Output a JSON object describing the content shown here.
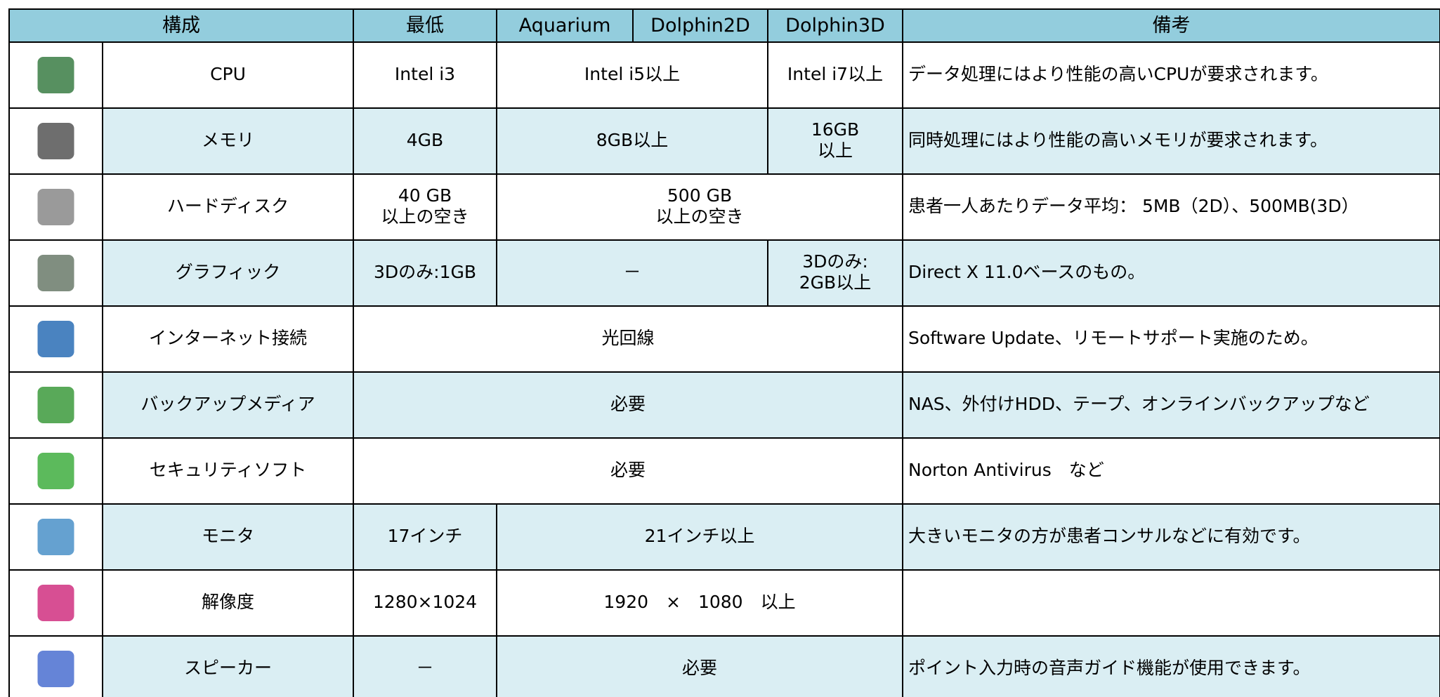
{
  "table": {
    "header": [
      "構成",
      "最低",
      "Aquarium",
      "Dolphin2D",
      "Dolphin3D",
      "備考"
    ],
    "rows": [
      {
        "name": "CPU",
        "cells": [
          "Intel i3",
          "Intel i5以上",
          "Intel i7以上"
        ],
        "note": "データ処理にはより性能の高いCPUが要求されます。"
      },
      {
        "name": "メモリ",
        "cells": [
          "4GB",
          "8GB以上",
          "16GB\n以上"
        ],
        "note": "同時処理にはより性能の高いメモリが要求されます。"
      },
      {
        "name": "ハードディスク",
        "cells": [
          "40 GB\n以上の空き",
          "500 GB\n以上の空き"
        ],
        "note": "患者一人あたりデータ平均： 5MB（2D）、500MB(3D）"
      },
      {
        "name": "グラフィック",
        "cells": [
          "3Dのみ:1GB",
          "－",
          "3Dのみ:\n2GB以上"
        ],
        "note": "Direct X 11.0ベースのもの。"
      },
      {
        "name": "インターネット接続",
        "cells": [
          "光回線"
        ],
        "note": "Software Update、リモートサポート実施のため。"
      },
      {
        "name": "バックアップメディア",
        "cells": [
          "必要"
        ],
        "note": "NAS、外付けHDD、テープ、オンラインバックアップなど"
      },
      {
        "name": "セキュリティソフト",
        "cells": [
          "必要"
        ],
        "note": "Norton Antivirus　など"
      },
      {
        "name": "モニタ",
        "cells": [
          "17インチ",
          "21インチ以上"
        ],
        "note": "大きいモニタの方が患者コンサルなどに有効です。"
      },
      {
        "name": "解像度",
        "cells": [
          "1280×1024",
          "1920　×　1080　以上"
        ]
      },
      {
        "name": "スピーカー",
        "cells": [
          "－",
          "必要"
        ],
        "note": "ポイント入力時の音声ガイド機能が使用できます。"
      }
    ]
  }
}
